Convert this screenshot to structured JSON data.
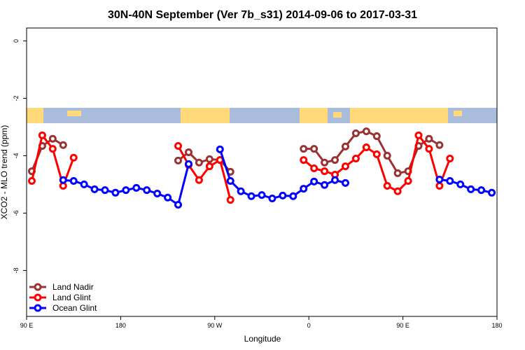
{
  "chart_data": {
    "type": "line",
    "title": "30N-40N September (Ver 7b_s31)   2014-09-06 to 2017-03-31",
    "x_label": "Longitude",
    "y_label": "XCO2 - MLO trend (ppm)",
    "x": [
      95,
      105,
      115,
      125,
      135,
      145,
      155,
      165,
      175,
      185,
      195,
      205,
      215,
      225,
      235,
      245,
      255,
      265,
      275,
      285,
      295,
      305,
      315,
      325,
      335,
      345,
      355,
      365,
      375,
      385,
      395,
      405,
      415,
      425,
      435,
      445,
      455,
      465,
      475,
      485,
      495,
      505,
      515,
      525,
      535
    ],
    "xlim": [
      90,
      540
    ],
    "xticks": [
      {
        "value": 90,
        "label": "90 E"
      },
      180,
      {
        "value": 270,
        "label": "90 W"
      },
      {
        "value": 360,
        "label": "0"
      },
      {
        "value": 450,
        "label": "90 E"
      },
      {
        "value": 540,
        "label": "180"
      }
    ],
    "ylim": [
      -9.6,
      0.45
    ],
    "yticks": [
      0,
      -2,
      -4,
      -6,
      -8
    ],
    "legend": "bottom-left",
    "series": [
      {
        "name": "Land Nadir",
        "color": "#993333",
        "values": [
          -4.54,
          -3.66,
          -3.41,
          -3.63,
          null,
          null,
          null,
          null,
          null,
          null,
          null,
          null,
          null,
          null,
          -4.17,
          -3.88,
          -4.24,
          -4.12,
          -4.15,
          -4.56,
          null,
          null,
          null,
          null,
          null,
          null,
          -3.76,
          -3.76,
          -4.24,
          -4.15,
          -3.68,
          -3.22,
          -3.15,
          -3.32,
          -4.0,
          -4.61,
          -4.54,
          -3.66,
          -3.41,
          -3.63,
          null,
          null,
          null,
          null,
          null
        ]
      },
      {
        "name": "Land Glint",
        "color": "#ff0000",
        "values": [
          -4.88,
          -3.29,
          -3.76,
          -5.05,
          -4.07,
          null,
          null,
          null,
          null,
          null,
          null,
          null,
          null,
          null,
          -3.66,
          -4.32,
          -4.85,
          -4.37,
          -4.15,
          -5.54,
          null,
          null,
          null,
          null,
          null,
          null,
          -4.15,
          -4.44,
          -4.54,
          -4.66,
          -4.37,
          -4.1,
          -3.71,
          -3.95,
          -5.05,
          -5.24,
          -4.88,
          -3.29,
          -3.76,
          -5.05,
          -4.1,
          null,
          null,
          null,
          null
        ]
      },
      {
        "name": "Ocean Glint",
        "color": "#0000ff",
        "values": [
          null,
          null,
          null,
          -4.85,
          -4.88,
          -5.0,
          -5.17,
          -5.2,
          -5.29,
          -5.2,
          -5.12,
          -5.2,
          -5.32,
          -5.46,
          -5.71,
          -4.29,
          null,
          null,
          -3.78,
          -4.88,
          -5.24,
          -5.41,
          -5.37,
          -5.49,
          -5.39,
          -5.41,
          -5.15,
          -4.9,
          -5.02,
          -4.85,
          -4.95,
          null,
          null,
          null,
          null,
          null,
          null,
          null,
          null,
          -4.83,
          -4.88,
          -5.0,
          -5.17,
          -5.2,
          -5.29
        ]
      }
    ]
  }
}
